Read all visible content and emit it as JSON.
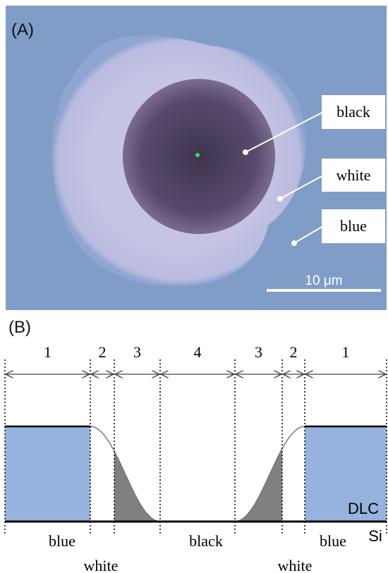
{
  "panel_a": {
    "label": "(A)",
    "annotations": [
      "black",
      "white",
      "blue"
    ],
    "scale_bar": "10 μm"
  },
  "panel_b": {
    "label": "(B)",
    "zones": [
      "1",
      "2",
      "3",
      "4",
      "3",
      "2",
      "1"
    ],
    "bottom_labels": [
      "blue",
      "white",
      "black",
      "white",
      "blue"
    ],
    "layers": [
      "DLC",
      "Si"
    ]
  }
}
